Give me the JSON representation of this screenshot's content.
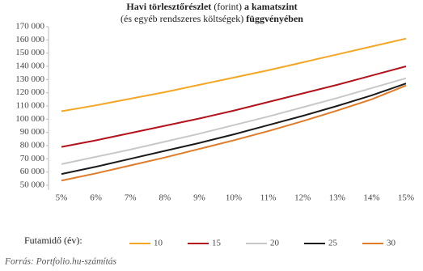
{
  "chart_data": {
    "type": "line",
    "title": [
      "Havi törlesztőrészlet",
      "(forint)",
      "a kamatszint"
    ],
    "subtitle": [
      "(és egyéb rendszeres költségek)",
      "függvényében"
    ],
    "categories": [
      "5%",
      "6%",
      "7%",
      "8%",
      "9%",
      "10%",
      "11%",
      "12%",
      "13%",
      "14%",
      "15%"
    ],
    "series": [
      {
        "name": "10",
        "color": "#f5a623",
        "values": [
          106000,
          110500,
          115500,
          120500,
          126000,
          131500,
          137000,
          143000,
          149000,
          155000,
          161000
        ]
      },
      {
        "name": "15",
        "color": "#b5121b",
        "values": [
          79000,
          84000,
          89500,
          95000,
          100500,
          106500,
          113000,
          119500,
          126000,
          133000,
          140000
        ]
      },
      {
        "name": "20",
        "color": "#c8c8c8",
        "values": [
          66000,
          71500,
          77000,
          83000,
          89000,
          95500,
          102000,
          109000,
          116000,
          123500,
          131000
        ]
      },
      {
        "name": "25",
        "color": "#1a1a1a",
        "values": [
          58500,
          64000,
          70000,
          76000,
          82000,
          88500,
          95500,
          102500,
          110000,
          118000,
          127000
        ]
      },
      {
        "name": "30",
        "color": "#e07b29",
        "values": [
          53500,
          59000,
          65000,
          71000,
          77500,
          84000,
          91000,
          98500,
          106500,
          115000,
          125500
        ]
      }
    ],
    "ylim": [
      50000,
      170000
    ],
    "yticks": [
      {
        "value": 50000,
        "label": "50 000"
      },
      {
        "value": 60000,
        "label": "60 000"
      },
      {
        "value": 70000,
        "label": "70 000"
      },
      {
        "value": 80000,
        "label": "80 000"
      },
      {
        "value": 90000,
        "label": "90 000"
      },
      {
        "value": 100000,
        "label": "100 000"
      },
      {
        "value": 110000,
        "label": "110 000"
      },
      {
        "value": 120000,
        "label": "120 000"
      },
      {
        "value": 130000,
        "label": "130 000"
      },
      {
        "value": 140000,
        "label": "140 000"
      },
      {
        "value": 150000,
        "label": "150 000"
      },
      {
        "value": 160000,
        "label": "160 000"
      },
      {
        "value": 170000,
        "label": "170 000"
      }
    ],
    "legend_title": "Futamidő (év):",
    "source": "Forrás: Portfolio.hu-számítás"
  }
}
